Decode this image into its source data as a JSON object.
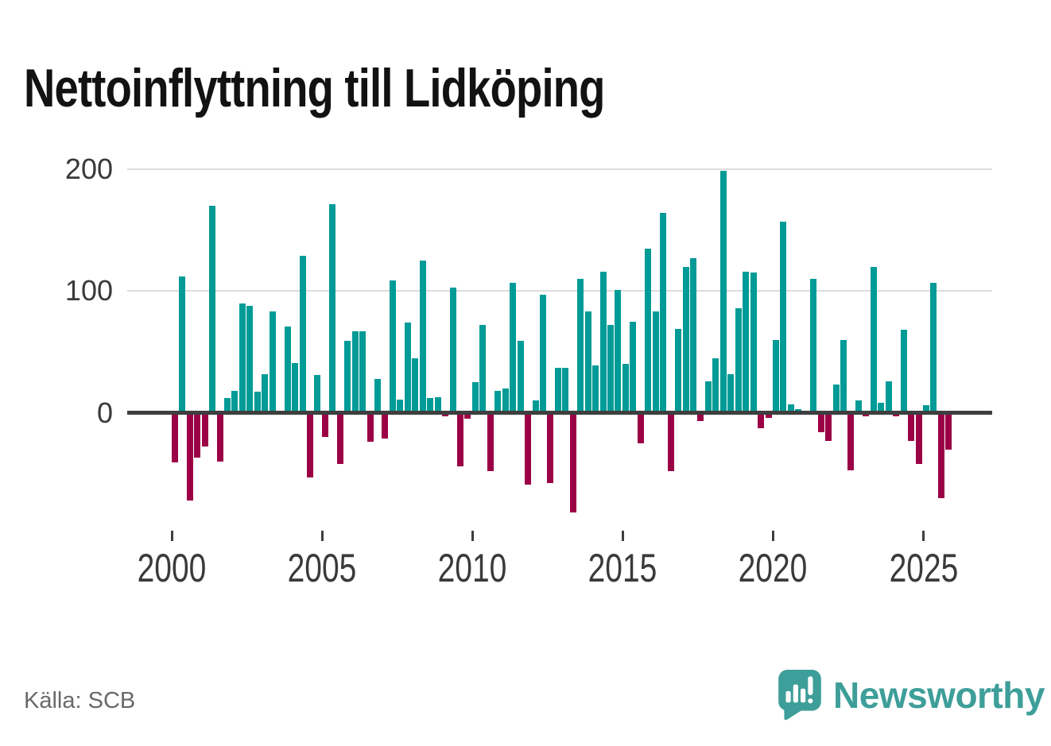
{
  "title": "Nettoinflyttning till Lidköping",
  "source": "Källa: SCB",
  "logo": {
    "text": "Newsworthy",
    "icon": "newsworthy-speech-bubble-bar-chart-icon"
  },
  "colors": {
    "positive": "#009b96",
    "negative": "#9b0046",
    "grid": "#dcdcdc",
    "zero_line": "#3e3e3e",
    "title_text": "#121212",
    "axis_text": "#3a3a3a",
    "source_text": "#696969",
    "logo": "#3e9e99",
    "background": "#ffffff"
  },
  "chart_data": {
    "type": "bar",
    "title": "Nettoinflyttning till Lidköping",
    "frequency": "quarterly",
    "x_start": "2000 Q1",
    "x_end": "2025 Q4",
    "start_year": 2000,
    "x_tick_labels": [
      "2000",
      "2005",
      "2010",
      "2015",
      "2020",
      "2025"
    ],
    "x_tick_every_n_bars": 20,
    "y_ticks": [
      0,
      100,
      200
    ],
    "y_gridlines": [
      100,
      200
    ],
    "ylim": [
      -90,
      210
    ],
    "grid": true,
    "legend": "none",
    "series": [
      {
        "name": "Nettoinflyttning",
        "values": [
          -41,
          112,
          -72,
          -37,
          -28,
          170,
          -40,
          12,
          18,
          90,
          88,
          17,
          32,
          83,
          0,
          71,
          41,
          129,
          -53,
          31,
          -20,
          171,
          -42,
          59,
          67,
          67,
          -24,
          28,
          -21,
          109,
          11,
          74,
          45,
          125,
          12,
          13,
          -3,
          103,
          -44,
          -5,
          25,
          72,
          -48,
          18,
          20,
          107,
          59,
          -59,
          10,
          97,
          -58,
          37,
          37,
          -82,
          110,
          83,
          39,
          116,
          72,
          101,
          40,
          75,
          -25,
          135,
          83,
          164,
          -48,
          69,
          120,
          127,
          -7,
          26,
          45,
          199,
          32,
          86,
          116,
          115,
          -13,
          -4,
          60,
          157,
          7,
          3,
          0,
          110,
          -16,
          -23,
          23,
          60,
          -47,
          10,
          -3,
          120,
          8,
          26,
          -3,
          68,
          -23,
          -42,
          6,
          107,
          -70,
          -30
        ]
      }
    ]
  }
}
